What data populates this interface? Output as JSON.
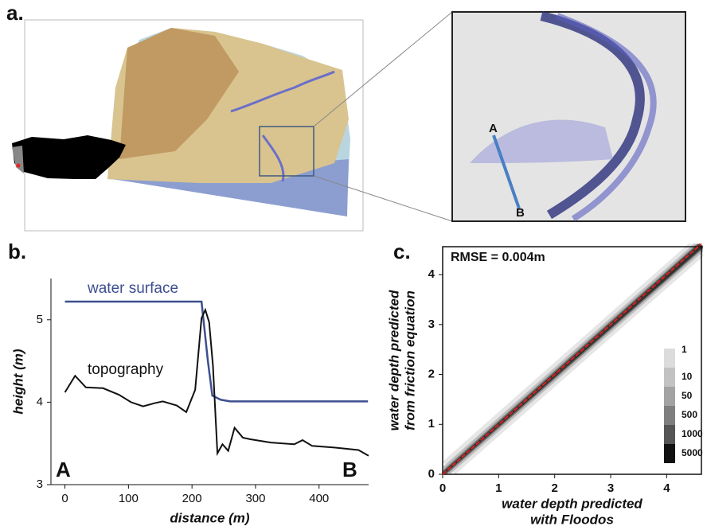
{
  "panel_a": {
    "label": "a.",
    "point_a": "A",
    "point_b": "B"
  },
  "chart_data": [
    {
      "type": "line",
      "panel_label": "b.",
      "xlabel": "distance (m)",
      "ylabel": "height (m)",
      "xlim": [
        -22,
        478
      ],
      "ylim": [
        3,
        5.5
      ],
      "xticks": [
        0,
        100,
        200,
        300,
        400
      ],
      "yticks": [
        3,
        4,
        5
      ],
      "annotations": [
        "A",
        "B"
      ],
      "series": [
        {
          "name": "water surface",
          "color": "#3d4f8f",
          "x": [
            0,
            215,
            225,
            232,
            245,
            260,
            477
          ],
          "values": [
            5.22,
            5.22,
            4.5,
            4.08,
            4.03,
            4.01,
            4.01
          ]
        },
        {
          "name": "topography",
          "color": "#111111",
          "x": [
            0,
            16,
            33,
            60,
            85,
            104,
            123,
            142,
            154,
            176,
            191,
            205,
            215,
            221,
            227,
            233,
            240,
            248,
            257,
            267,
            280,
            292,
            324,
            361,
            374,
            389,
            424,
            462,
            478
          ],
          "values": [
            4.12,
            4.32,
            4.18,
            4.17,
            4.09,
            4.0,
            3.95,
            3.99,
            4.01,
            3.96,
            3.88,
            4.15,
            5.02,
            5.12,
            4.97,
            4.44,
            3.38,
            3.49,
            3.41,
            3.69,
            3.57,
            3.55,
            3.51,
            3.49,
            3.54,
            3.47,
            3.45,
            3.42,
            3.35
          ]
        }
      ]
    },
    {
      "type": "scatter",
      "panel_label": "c.",
      "xlabel": [
        "water depth predicted",
        "with Floodos"
      ],
      "ylabel": [
        "water depth predicted",
        "from friction equation"
      ],
      "annotation": "RMSE = 0.004m",
      "xlim": [
        0,
        4.62
      ],
      "ylim": [
        0,
        4.56
      ],
      "xticks": [
        0,
        1,
        2,
        3,
        4
      ],
      "yticks": [
        0,
        1,
        2,
        3,
        4
      ],
      "series": [
        {
          "color": "#e0201c",
          "x": [
            0,
            4.62
          ],
          "values": [
            0,
            4.62
          ]
        }
      ],
      "colorbar": {
        "levels": [
          1,
          10,
          50,
          500,
          1000,
          5000
        ],
        "colors": [
          "#dcdcdc",
          "#c2c2c2",
          "#a3a3a3",
          "#7f7f7f",
          "#555555",
          "#111111"
        ]
      }
    }
  ]
}
